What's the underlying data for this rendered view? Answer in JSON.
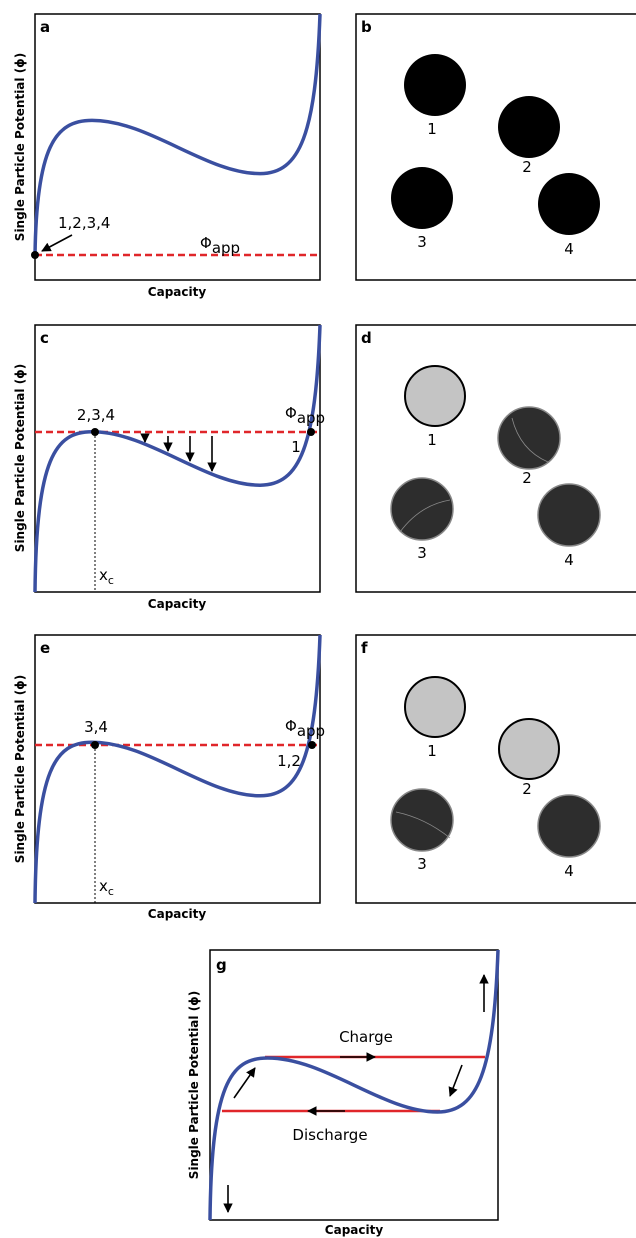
{
  "panels": [
    {
      "label": "a",
      "y_label": "Single Particle Potential (ϕ)",
      "x_label": "Capacity",
      "point_label": "1,2,3,4",
      "potential_symbol": "Φ",
      "potential_subscript": "app"
    },
    {
      "label": "b",
      "particles": [
        "1",
        "2",
        "3",
        "4"
      ]
    },
    {
      "label": "c",
      "y_label": "Single Particle Potential (ϕ)",
      "x_label": "Capacity",
      "left_point_label": "2,3,4",
      "right_point_label": "1",
      "potential_symbol": "Φ",
      "potential_subscript": "app",
      "critical_symbol": "x",
      "critical_subscript": "c"
    },
    {
      "label": "d",
      "particles": [
        "1",
        "2",
        "3",
        "4"
      ]
    },
    {
      "label": "e",
      "y_label": "Single Particle Potential (ϕ)",
      "x_label": "Capacity",
      "left_point_label": "3,4",
      "right_point_label": "1,2",
      "potential_symbol": "Φ",
      "potential_subscript": "app",
      "critical_symbol": "x",
      "critical_subscript": "c"
    },
    {
      "label": "f",
      "particles": [
        "1",
        "2",
        "3",
        "4"
      ]
    },
    {
      "label": "g",
      "y_label": "Single Particle Potential (ϕ)",
      "x_label": "Capacity",
      "charge_label": "Charge",
      "discharge_label": "Discharge"
    }
  ]
}
